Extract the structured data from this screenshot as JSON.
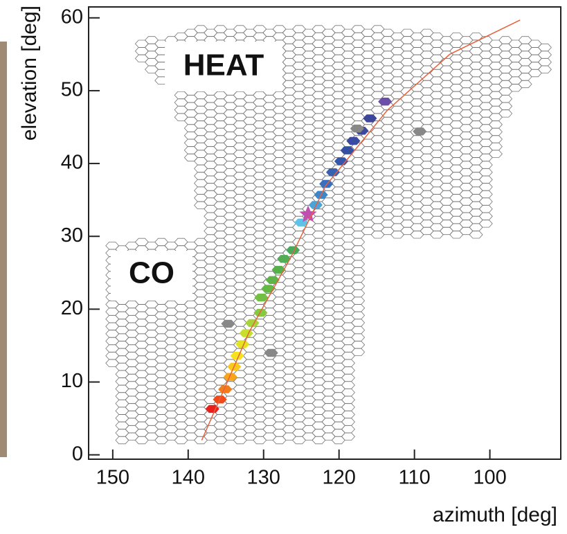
{
  "chart_data": {
    "type": "scatter",
    "xlabel": "azimuth  [deg]",
    "ylabel": "elevation  [deg]",
    "xlim": [
      153.2,
      90.6
    ],
    "ylim": [
      -0.6,
      61.5
    ],
    "xticks": [
      150,
      140,
      130,
      120,
      110,
      100
    ],
    "yticks": [
      0,
      10,
      20,
      30,
      40,
      50,
      60
    ],
    "annotations": [
      "HEAT",
      "CO"
    ],
    "series": [
      {
        "marker": "hexagon",
        "x": [
          136.8,
          135.8,
          135.1,
          134.4,
          133.9,
          133.5,
          132.8,
          132.3,
          131.5,
          130.4,
          130.3,
          129.4,
          128.8,
          128.0,
          127.3,
          126.1,
          125.0,
          123.1,
          122.4,
          121.7,
          120.8,
          119.7,
          118.9,
          118.1,
          117.0,
          115.9,
          113.9,
          134.7,
          129.0,
          117.6,
          109.3
        ],
        "y": [
          6.3,
          7.6,
          9.0,
          10.7,
          12.1,
          13.6,
          15.2,
          16.7,
          18.1,
          19.5,
          21.6,
          22.8,
          24.0,
          25.4,
          26.9,
          28.1,
          31.9,
          34.3,
          35.7,
          37.2,
          38.8,
          40.3,
          41.8,
          43.1,
          44.5,
          46.2,
          48.5,
          18.0,
          14.0,
          44.8,
          44.4
        ],
        "colors": [
          "#e8201c",
          "#f04a18",
          "#f47b1a",
          "#f8a51c",
          "#fbc91e",
          "#f6e21e",
          "#e2e41f",
          "#c8df2a",
          "#a8d43a",
          "#86c840",
          "#73bf44",
          "#65b845",
          "#5fb448",
          "#58b04c",
          "#52ad55",
          "#4aaa5c",
          "#5fc2e8",
          "#4ba3d8",
          "#3f86c8",
          "#3a6fbc",
          "#3861b2",
          "#3656a9",
          "#3550a3",
          "#3a4aa0",
          "#3b489e",
          "#3d469b",
          "#6b4ea6",
          "#888888",
          "#888888",
          "#888888",
          "#888888"
        ]
      },
      {
        "marker": "star",
        "x": [
          124.1
        ],
        "y": [
          33.0
        ],
        "colors": [
          "#c050b0"
        ]
      },
      {
        "marker": "line",
        "color": "#e8603c",
        "x": [
          138.2,
          131.9,
          126.4,
          121.8,
          113.6,
          105.3,
          96.0
        ],
        "y": [
          2.0,
          16.9,
          27.1,
          36.9,
          47.3,
          55.0,
          59.7
        ]
      }
    ]
  }
}
